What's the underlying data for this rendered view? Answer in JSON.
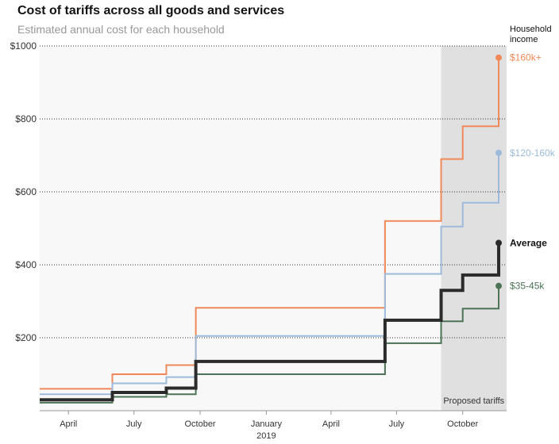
{
  "title": "Cost of tariffs across all goods and services",
  "subtitle": "Estimated annual cost for each household",
  "legend_heading": [
    "Household",
    "income"
  ],
  "chart_data": {
    "type": "line",
    "step": true,
    "ylim": [
      0,
      1000
    ],
    "yticks": [
      200,
      400,
      600,
      800,
      1000
    ],
    "ytick_labels": [
      "$200",
      "$400",
      "$600",
      "$800",
      "$1000"
    ],
    "xlim": [
      "2018-02-20",
      "2019-12-01"
    ],
    "xticks": [
      {
        "date": "2018-04-01",
        "label": "April"
      },
      {
        "date": "2018-07-01",
        "label": "July"
      },
      {
        "date": "2018-10-01",
        "label": "October"
      },
      {
        "date": "2019-01-01",
        "label": "January",
        "sublabel": "2019"
      },
      {
        "date": "2019-04-01",
        "label": "April"
      },
      {
        "date": "2019-07-01",
        "label": "July"
      },
      {
        "date": "2019-10-01",
        "label": "October"
      }
    ],
    "grid": "dotted-horizontal",
    "shaded_region": {
      "start": "2019-09-01",
      "end": "2019-12-01",
      "label": "Proposed tariffs"
    },
    "series": [
      {
        "name": "$160k+",
        "color": "#f0895a",
        "width": 2,
        "points": [
          [
            "2018-02-20",
            60
          ],
          [
            "2018-06-01",
            100
          ],
          [
            "2018-08-15",
            125
          ],
          [
            "2018-09-25",
            282
          ],
          [
            "2019-06-15",
            520
          ],
          [
            "2019-09-01",
            690
          ],
          [
            "2019-10-01",
            780
          ],
          [
            "2019-11-20",
            968
          ]
        ]
      },
      {
        "name": "$120-160k",
        "color": "#9dbadb",
        "width": 2,
        "points": [
          [
            "2018-02-20",
            45
          ],
          [
            "2018-06-01",
            75
          ],
          [
            "2018-08-15",
            92
          ],
          [
            "2018-09-25",
            205
          ],
          [
            "2019-06-15",
            375
          ],
          [
            "2019-09-01",
            505
          ],
          [
            "2019-10-01",
            570
          ],
          [
            "2019-11-20",
            707
          ]
        ]
      },
      {
        "name": "$35-45k",
        "color": "#4c7355",
        "width": 2,
        "points": [
          [
            "2018-02-20",
            22
          ],
          [
            "2018-06-01",
            38
          ],
          [
            "2018-08-15",
            45
          ],
          [
            "2018-09-25",
            100
          ],
          [
            "2019-06-15",
            185
          ],
          [
            "2019-09-01",
            245
          ],
          [
            "2019-10-01",
            280
          ],
          [
            "2019-11-20",
            342
          ]
        ]
      },
      {
        "name": "Average",
        "color": "#2b2b2b",
        "width": 4,
        "bold": true,
        "points": [
          [
            "2018-02-20",
            30
          ],
          [
            "2018-06-01",
            50
          ],
          [
            "2018-08-15",
            62
          ],
          [
            "2018-09-25",
            135
          ],
          [
            "2019-06-15",
            248
          ],
          [
            "2019-09-01",
            330
          ],
          [
            "2019-10-01",
            372
          ],
          [
            "2019-11-20",
            460
          ]
        ]
      }
    ]
  }
}
